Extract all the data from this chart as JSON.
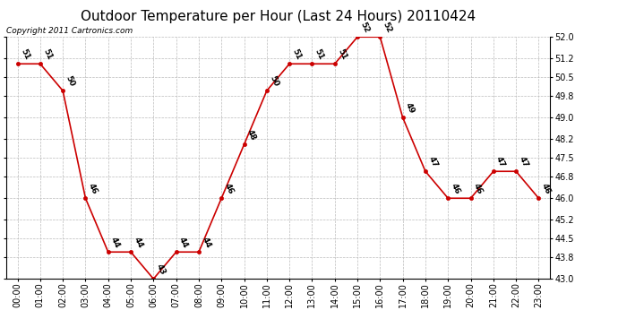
{
  "title": "Outdoor Temperature per Hour (Last 24 Hours) 20110424",
  "copyright": "Copyright 2011 Cartronics.com",
  "hours": [
    "00:00",
    "01:00",
    "02:00",
    "03:00",
    "04:00",
    "05:00",
    "06:00",
    "07:00",
    "08:00",
    "09:00",
    "10:00",
    "11:00",
    "12:00",
    "13:00",
    "14:00",
    "15:00",
    "16:00",
    "17:00",
    "18:00",
    "19:00",
    "20:00",
    "21:00",
    "22:00",
    "23:00"
  ],
  "temps": [
    51,
    51,
    50,
    46,
    44,
    44,
    43,
    44,
    44,
    46,
    48,
    50,
    51,
    51,
    51,
    52,
    52,
    49,
    47,
    46,
    46,
    47,
    47,
    46
  ],
  "ylim_min": 43.0,
  "ylim_max": 52.0,
  "yticks": [
    43.0,
    43.8,
    44.5,
    45.2,
    46.0,
    46.8,
    47.5,
    48.2,
    49.0,
    49.8,
    50.5,
    51.2,
    52.0
  ],
  "ytick_labels": [
    "43.0",
    "43.8",
    "44.5",
    "45.2",
    "46.0",
    "46.8",
    "47.5",
    "48.2",
    "49.0",
    "49.8",
    "50.5",
    "51.2",
    "52.0"
  ],
  "line_color": "#cc0000",
  "bg_color": "#ffffff",
  "grid_color": "#bbbbbb",
  "title_fontsize": 11,
  "label_fontsize": 6.5,
  "copyright_fontsize": 6.5,
  "tick_fontsize": 7
}
